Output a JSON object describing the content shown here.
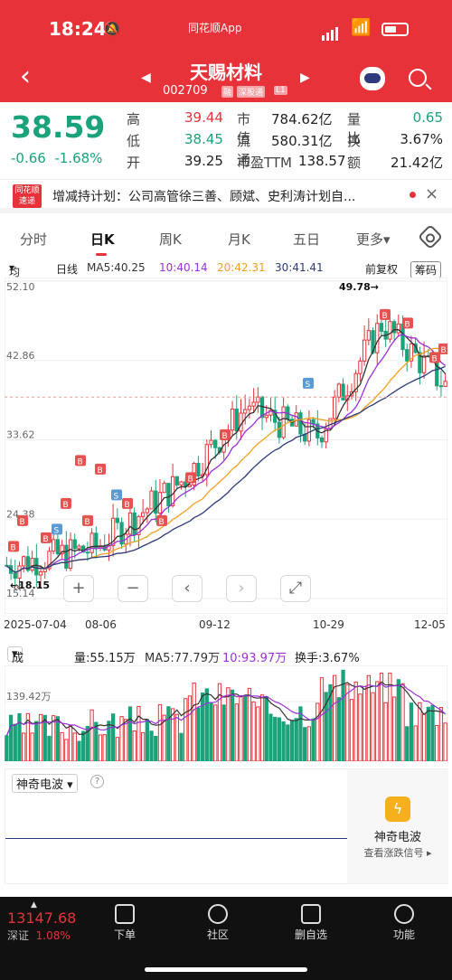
{
  "status": {
    "time": "18:24",
    "app": "同花顺App"
  },
  "header": {
    "name": "天赐材料",
    "code": "002709",
    "tags": [
      "融",
      "深股通",
      "L1"
    ]
  },
  "quote": {
    "price": "38.59",
    "change": "-0.66",
    "change_pct": "-1.68%",
    "rows": [
      {
        "k1": "高",
        "v1": "39.44",
        "k2": "市值",
        "v2": "784.62亿",
        "k3": "量比",
        "v3": "0.65"
      },
      {
        "k1": "低",
        "v1": "38.45",
        "k2": "流通",
        "v2": "580.31亿",
        "k3": "换",
        "v3": "3.67%"
      },
      {
        "k1": "开",
        "v1": "39.25",
        "k2": "市盈TTM",
        "v2": "138.57",
        "k3": "额",
        "v3": "21.42亿"
      }
    ]
  },
  "news": {
    "logo_top": "同花顺",
    "logo_bottom": "速递",
    "text": "增减持计划：公司高管徐三善、顾斌、史利涛计划自..."
  },
  "tabs": [
    "分时",
    "日K",
    "周K",
    "月K",
    "五日",
    "更多"
  ],
  "ma": {
    "mode": "均线",
    "period": "日线",
    "ma5": "MA5:40.25",
    "ma10": "10:40.14",
    "ma20": "20:42.31",
    "ma30": "30:41.41",
    "fq": "前复权",
    "chips": "筹码"
  },
  "colors": {
    "up": "#e8323a",
    "down": "#1aa37a",
    "ma5": "#333333",
    "ma10": "#9b30d9",
    "ma20": "#f0a020",
    "ma30": "#2d3a7b"
  },
  "chart_data": {
    "type": "candlestick",
    "y_ticks": [
      "52.10",
      "42.86",
      "33.62",
      "24.38",
      "15.14"
    ],
    "ylim": [
      15.14,
      52.1
    ],
    "x_ticks": [
      "2025-07-04",
      "08-06",
      "09-12",
      "10-29",
      "12-05"
    ],
    "high_label": "49.78→",
    "low_label": "←18.15",
    "volume": {
      "label": "成交量",
      "vol": "量:55.15万",
      "ma5": "MA5:77.79万",
      "ma10": "10:93.97万",
      "turnover": "换手:3.67%",
      "y_tick": "139.42万"
    }
  },
  "wave": {
    "label": "神奇电波",
    "title": "神奇电波",
    "sub": "查看涨跌信号"
  },
  "bottom": {
    "index": "13147.68",
    "index_name": "深证",
    "index_pct": "1.08%",
    "nav": [
      "下单",
      "社区",
      "删自选",
      "功能"
    ]
  }
}
